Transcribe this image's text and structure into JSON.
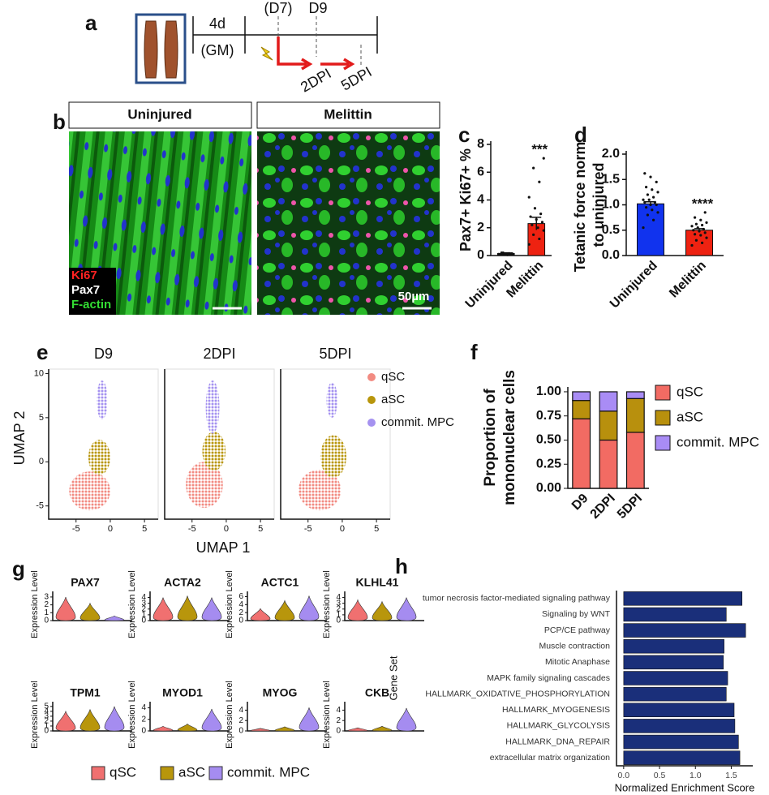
{
  "panel_labels": [
    "a",
    "b",
    "c",
    "d",
    "e",
    "f",
    "g",
    "h"
  ],
  "timeline": {
    "duration": "4d",
    "medium": "(GM)",
    "injury_day": "(D7)",
    "harvest_day": "D9",
    "timepoints": [
      "2DPI",
      "5DPI"
    ]
  },
  "images": {
    "conditions": [
      "Uninjured",
      "Melittin"
    ],
    "stains": [
      {
        "name": "Ki67",
        "color": "#ff2222"
      },
      {
        "name": "Pax7",
        "color": "#ffffff"
      },
      {
        "name": "F-actin",
        "color": "#33dd33"
      }
    ],
    "scale_bar": "50µm"
  },
  "chart_data": [
    {
      "type": "bar",
      "y_label": "Pax7+ Ki67+ %",
      "categories": [
        "Uninjured",
        "Melittin"
      ],
      "colors": [
        "#111111",
        "#ee2211"
      ],
      "values": [
        0.15,
        2.3
      ],
      "errors": [
        0.05,
        0.45
      ],
      "points": [
        [
          0.1,
          0.15,
          0.2,
          0.1,
          0.05,
          0.2,
          0.15,
          0.1
        ],
        [
          0.8,
          1.2,
          1.5,
          1.8,
          2.0,
          2.2,
          2.4,
          2.6,
          2.8,
          3.0,
          3.4,
          4.2,
          5.3,
          6.3,
          7.0
        ]
      ],
      "annotation": "***",
      "ylim": [
        0,
        8
      ],
      "yticks": [
        0,
        2,
        4,
        6,
        8
      ]
    },
    {
      "type": "bar",
      "y_label": [
        "Tetanic force norm.",
        "to uninjured"
      ],
      "categories": [
        "Uninjured",
        "Melittin"
      ],
      "colors": [
        "#1133ee",
        "#ee2211"
      ],
      "values": [
        1.02,
        0.5
      ],
      "errors": [
        0.04,
        0.03
      ],
      "points": [
        [
          0.55,
          0.7,
          0.8,
          0.85,
          0.9,
          0.95,
          1.0,
          1.0,
          1.05,
          1.05,
          1.1,
          1.1,
          1.15,
          1.2,
          1.25,
          1.3,
          1.35,
          1.45,
          1.55,
          1.62
        ],
        [
          0.2,
          0.25,
          0.3,
          0.35,
          0.4,
          0.42,
          0.45,
          0.48,
          0.5,
          0.52,
          0.55,
          0.58,
          0.6,
          0.62,
          0.65,
          0.7,
          0.75,
          0.85
        ]
      ],
      "annotation": "****",
      "ylim": [
        0,
        2
      ],
      "yticks": [
        {
          "value": 0,
          "label": "0.0"
        },
        0.5,
        {
          "value": 1,
          "label": "1.0"
        },
        1.5,
        {
          "value": 2,
          "label": "2.0"
        }
      ]
    },
    {
      "type": "scatter",
      "panels": [
        "D9",
        "2DPI",
        "5DPI"
      ],
      "x_label": "UMAP 1",
      "y_label": "UMAP 2",
      "xlim": [
        -9,
        7
      ],
      "ylim": [
        -6.5,
        10.5
      ],
      "xticks": [
        -5,
        0,
        5
      ],
      "yticks": [
        -5,
        0,
        5,
        10
      ],
      "legend": [
        {
          "name": "qSC",
          "color": "#f28b82"
        },
        {
          "name": "aSC",
          "color": "#b8960c"
        },
        {
          "name": "commit. MPC",
          "color": "#a592f0"
        }
      ]
    },
    {
      "type": "stacked_bar",
      "y_label": [
        "Proportion of",
        "mononuclear cells"
      ],
      "categories": [
        "D9",
        "2DPI",
        "5DPI"
      ],
      "series": [
        {
          "name": "qSC",
          "color": "#f26b63",
          "values": [
            0.72,
            0.5,
            0.58
          ]
        },
        {
          "name": "aSC",
          "color": "#b8900d",
          "values": [
            0.19,
            0.3,
            0.35
          ]
        },
        {
          "name": "commit. MPC",
          "color": "#a98cf5",
          "values": [
            0.09,
            0.2,
            0.07
          ]
        }
      ],
      "ylim": [
        0,
        1.05
      ],
      "yticks": [
        {
          "value": 0,
          "label": "0.00"
        },
        {
          "value": 0.25,
          "label": "0.25"
        },
        {
          "value": 0.5,
          "label": "0.50"
        },
        {
          "value": 0.75,
          "label": "0.75"
        },
        {
          "value": 1,
          "label": "1.00"
        }
      ]
    },
    {
      "type": "violin",
      "y_label": "Expression Level",
      "series": [
        {
          "name": "qSC",
          "color": "#f07070"
        },
        {
          "name": "aSC",
          "color": "#b8960c"
        },
        {
          "name": "commit. MPC",
          "color": "#a58cf0"
        }
      ],
      "panels": [
        {
          "gene": "PAX7",
          "ylim": [
            0,
            3.3
          ],
          "yticks": [
            0,
            1,
            2,
            3
          ],
          "max": [
            3.0,
            2.2,
            0.6
          ]
        },
        {
          "gene": "ACTA2",
          "ylim": [
            0,
            4.5
          ],
          "yticks": [
            0,
            1,
            2,
            3,
            4
          ],
          "max": [
            4.0,
            4.3,
            4.0
          ]
        },
        {
          "gene": "ACTC1",
          "ylim": [
            0,
            6.5
          ],
          "yticks": [
            0,
            2,
            4,
            6
          ],
          "max": [
            3.0,
            5.0,
            6.2
          ]
        },
        {
          "gene": "KLHL41",
          "ylim": [
            0,
            4.5
          ],
          "yticks": [
            0,
            1,
            2,
            3,
            4
          ],
          "max": [
            3.6,
            3.3,
            4.0
          ]
        },
        {
          "gene": "TPM1",
          "ylim": [
            0,
            5.3
          ],
          "yticks": [
            0,
            1,
            2,
            3,
            4,
            5
          ],
          "max": [
            4.0,
            4.4,
            5.0
          ]
        },
        {
          "gene": "MYOD1",
          "ylim": [
            0,
            4.5
          ],
          "yticks": [
            0,
            2,
            4
          ],
          "max": [
            0.8,
            1.2,
            3.8
          ]
        },
        {
          "gene": "MYOG",
          "ylim": [
            0,
            5
          ],
          "yticks": [
            0,
            2,
            4
          ],
          "max": [
            0.5,
            0.8,
            4.5
          ]
        },
        {
          "gene": "CKB",
          "ylim": [
            0,
            5
          ],
          "yticks": [
            0,
            2,
            4
          ],
          "max": [
            0.6,
            0.9,
            4.4
          ]
        }
      ]
    },
    {
      "type": "hbar",
      "x_label": "Normalized Enrichment Score",
      "y_label": "Gene Set",
      "color": "#1a2f7a",
      "categories": [
        "tumor necrosis factor-mediated signaling pathway",
        "Signaling by WNT",
        "PCP/CE pathway",
        "Muscle contraction",
        "Mitotic Anaphase",
        "MAPK family signaling cascades",
        "HALLMARK_OXIDATIVE_PHOSPHORYLATION",
        "HALLMARK_MYOGENESIS",
        "HALLMARK_GLYCOLYSIS",
        "HALLMARK_DNA_REPAIR",
        "extracellular matrix organization"
      ],
      "values": [
        1.65,
        1.43,
        1.7,
        1.4,
        1.39,
        1.45,
        1.43,
        1.54,
        1.55,
        1.6,
        1.62
      ],
      "xlim": [
        -0.1,
        1.8
      ],
      "xticks": [
        {
          "value": 0,
          "label": "0.0"
        },
        0.5,
        {
          "value": 1,
          "label": "1.0"
        },
        1.5
      ]
    }
  ]
}
